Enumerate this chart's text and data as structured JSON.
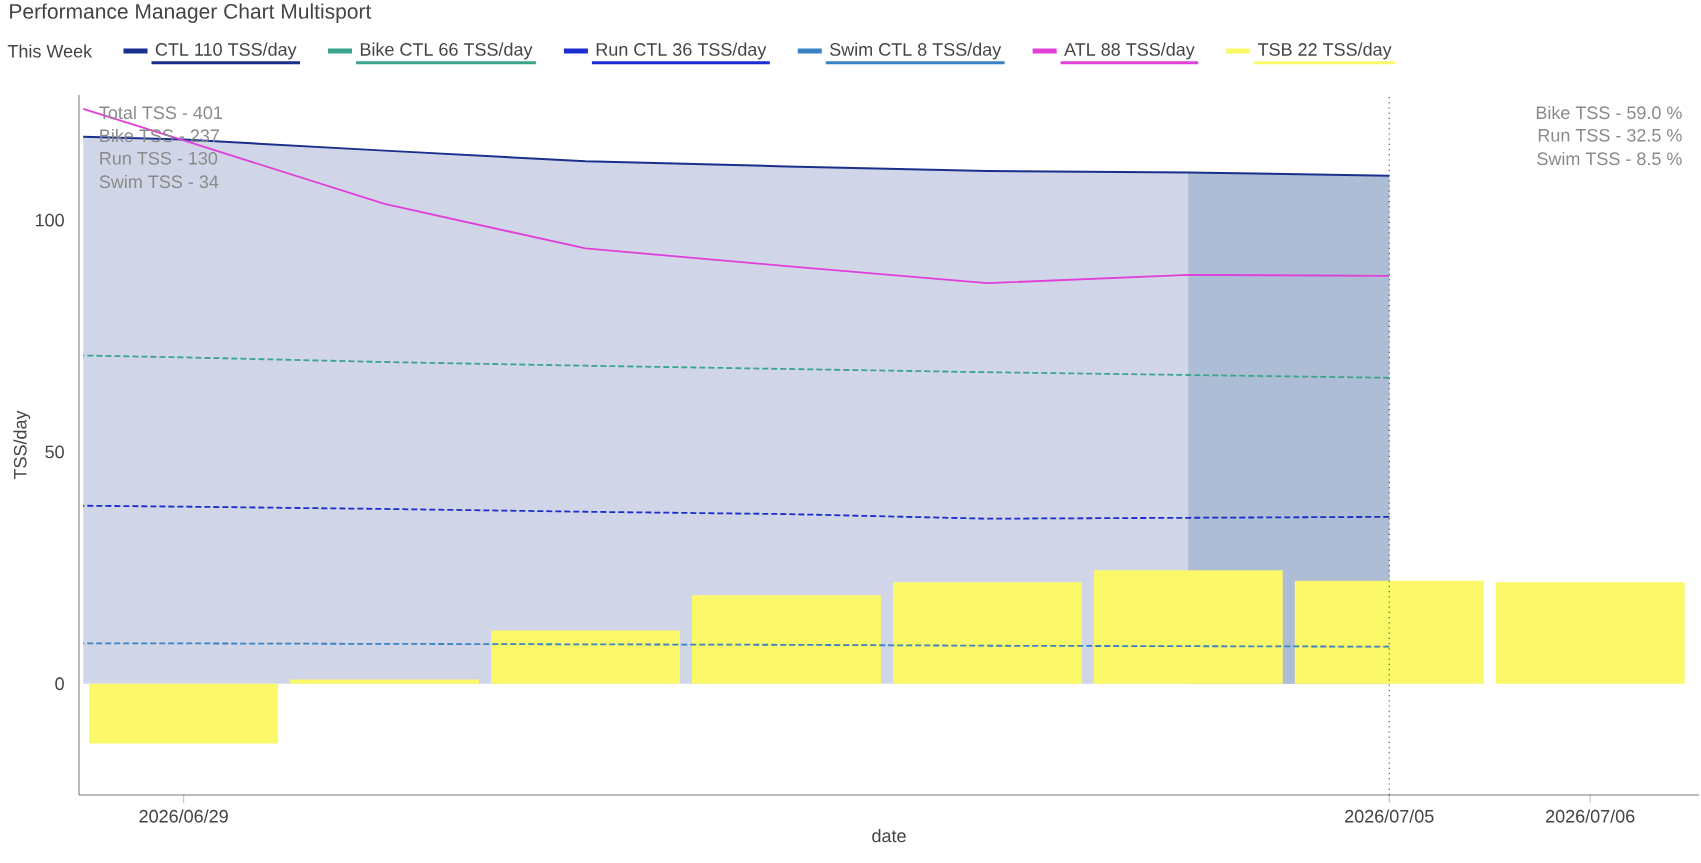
{
  "chart_data": {
    "type": "line",
    "title": "Performance Manager Chart Multisport",
    "legend_title": "This Week",
    "xlabel": "date",
    "ylabel": "TSS/day",
    "x": [
      "2026-06-28T12:00",
      "2026-06-29",
      "2026-06-30",
      "2026-07-01",
      "2026-07-02",
      "2026-07-03",
      "2026-07-04",
      "2026-07-05"
    ],
    "series": [
      {
        "name": "CTL 110 TSS/day",
        "type": "area",
        "color": "#1a2f8c",
        "values": [
          118,
          117.4,
          115,
          112.7,
          111.6,
          110.6,
          110.3,
          109.6
        ]
      },
      {
        "name": "Bike CTL 66 TSS/day",
        "color": "#3aa58a",
        "line_style": "dashed",
        "values": [
          70.8,
          70.4,
          69.4,
          68.6,
          67.9,
          67.2,
          66.6,
          66.0
        ]
      },
      {
        "name": "Run CTL 36 TSS/day",
        "color": "#1a2ed0",
        "line_style": "dashed",
        "values": [
          38.4,
          38.2,
          37.7,
          37.1,
          36.6,
          35.6,
          35.8,
          36.0
        ]
      },
      {
        "name": "Swim CTL 8 TSS/day",
        "color": "#3b82c4",
        "line_style": "dashed",
        "values": [
          8.7,
          8.7,
          8.6,
          8.5,
          8.4,
          8.2,
          8.1,
          8.0
        ]
      },
      {
        "name": "ATL 88 TSS/day",
        "color": "#e040d8",
        "values": [
          124,
          117.2,
          103.5,
          93.9,
          90.1,
          86.4,
          88.2,
          88.0
        ]
      },
      {
        "name": "TSB 22 TSS/day",
        "type": "bar",
        "color": "#fbf96a",
        "x": [
          "2026-06-29",
          "2026-06-30",
          "2026-07-01",
          "2026-07-02",
          "2026-07-03",
          "2026-07-04",
          "2026-07-05",
          "2026-07-06"
        ],
        "values": [
          -12.9,
          0.9,
          11.5,
          19.1,
          21.9,
          24.5,
          22.2,
          21.9
        ]
      }
    ],
    "xlim": [
      "2026-06-28T11:30",
      "2026-07-06T13:00"
    ],
    "xticks": [
      {
        "value": "2026-06-29",
        "label": "2026/06/29"
      },
      {
        "value": "2026-07-05",
        "label": "2026/07/05"
      },
      {
        "value": "2026-07-06",
        "label": "2026/07/06"
      }
    ],
    "ylim": [
      -24,
      127
    ],
    "yticks": [
      0,
      50,
      100
    ],
    "bands": [
      {
        "axis": "x",
        "from": "2026-07-04",
        "to": "2026-07-05",
        "color": "#adbdd6"
      }
    ],
    "ref_lines": [
      {
        "axis": "x",
        "value": "2026-07-05",
        "color": "#555555",
        "line_style": "dotted"
      }
    ],
    "annotations": [
      "Total TSS - 401",
      "Bike TSS - 237",
      "Run TSS - 130",
      "Swim TSS - 34",
      "Bike TSS - 59.0 %",
      "Run TSS - 32.5 %",
      "Swim TSS - 8.5 %"
    ],
    "legend": "top"
  }
}
